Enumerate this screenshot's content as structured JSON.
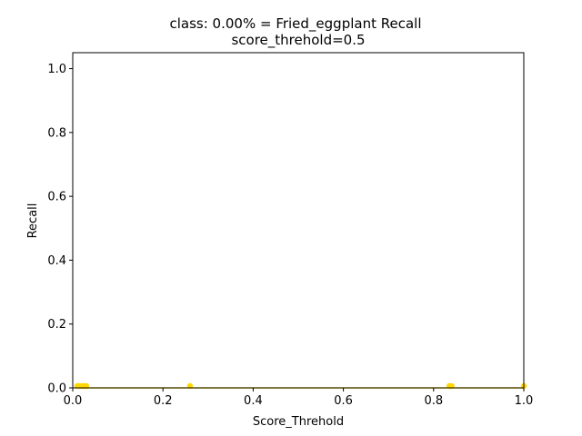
{
  "chart_data": {
    "type": "line",
    "title": "class: 0.00% = Fried_eggplant Recall",
    "subtitle": "score_threhold=0.5",
    "xlabel": "Score_Threhold",
    "ylabel": "Recall",
    "xlim": [
      0,
      1
    ],
    "ylim": [
      0,
      1.05
    ],
    "xticks": [
      "0.0",
      "0.2",
      "0.4",
      "0.6",
      "0.8",
      "1.0"
    ],
    "yticks": [
      "0.0",
      "0.2",
      "0.4",
      "0.6",
      "0.8",
      "1.0"
    ],
    "grid": false,
    "series": [
      {
        "color": "#ffd700",
        "x": [
          0.01,
          0.015,
          0.02,
          0.025,
          0.03,
          0.26,
          0.835,
          0.84,
          1.0
        ],
        "y": [
          0,
          0,
          0,
          0,
          0,
          0,
          0,
          0,
          0
        ]
      }
    ]
  }
}
